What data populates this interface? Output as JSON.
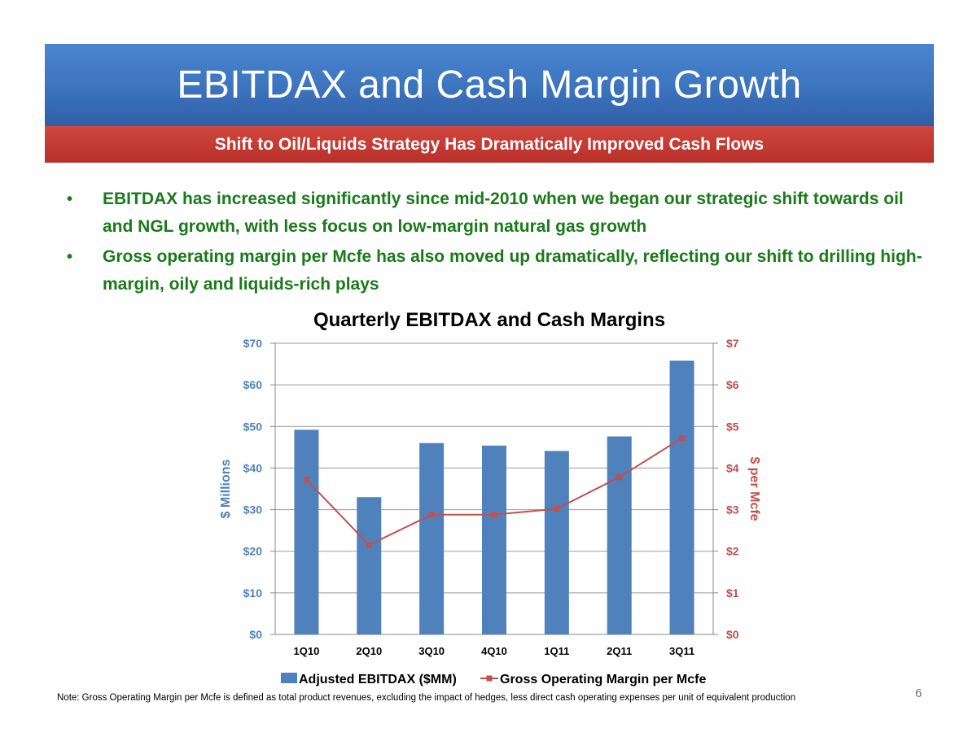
{
  "slide": {
    "title": "EBITDAX and Cash Margin Growth",
    "subtitle": "Shift to Oil/Liquids Strategy Has Dramatically Improved Cash Flows",
    "bullets": [
      "EBITDAX has increased significantly since mid-2010 when we began our strategic shift towards oil and NGL growth, with less focus on low-margin natural gas growth",
      "Gross operating margin per Mcfe has also moved up dramatically, reflecting our shift to drilling high-margin, oily and liquids-rich plays"
    ],
    "bullet_symbol": "•",
    "note": "Note: Gross Operating Margin per Mcfe is defined as total product revenues, excluding the impact of hedges, less direct cash operating expenses per unit of equivalent production",
    "page_number": "6"
  },
  "chart_data": {
    "type": "bar",
    "title": "Quarterly EBITDAX and Cash Margins",
    "categories": [
      "1Q10",
      "2Q10",
      "3Q10",
      "4Q10",
      "1Q11",
      "2Q11",
      "3Q11"
    ],
    "ylabel": "$ Millions",
    "y2label": "$ per Mcfe",
    "ylim": [
      0,
      70
    ],
    "y2lim": [
      0,
      7
    ],
    "yticks": [
      "$0",
      "$10",
      "$20",
      "$30",
      "$40",
      "$50",
      "$60",
      "$70"
    ],
    "y2ticks": [
      "$0",
      "$1",
      "$2",
      "$3",
      "$4",
      "$5",
      "$6",
      "$7"
    ],
    "grid": true,
    "legend_position": "bottom",
    "series": [
      {
        "name": "Adjusted EBITDAX ($MM)",
        "type": "bar",
        "axis": "left",
        "color": "#4f81bd",
        "values": [
          49.2,
          33.0,
          46.0,
          45.4,
          44.1,
          47.6,
          65.8
        ]
      },
      {
        "name": "Gross Operating Margin per Mcfe",
        "type": "line",
        "axis": "right",
        "color": "#c0504d",
        "values": [
          3.72,
          2.15,
          2.88,
          2.88,
          3.02,
          3.78,
          4.72
        ]
      }
    ],
    "left_axis_color": "#4f81bd",
    "right_axis_color": "#c0504d"
  }
}
